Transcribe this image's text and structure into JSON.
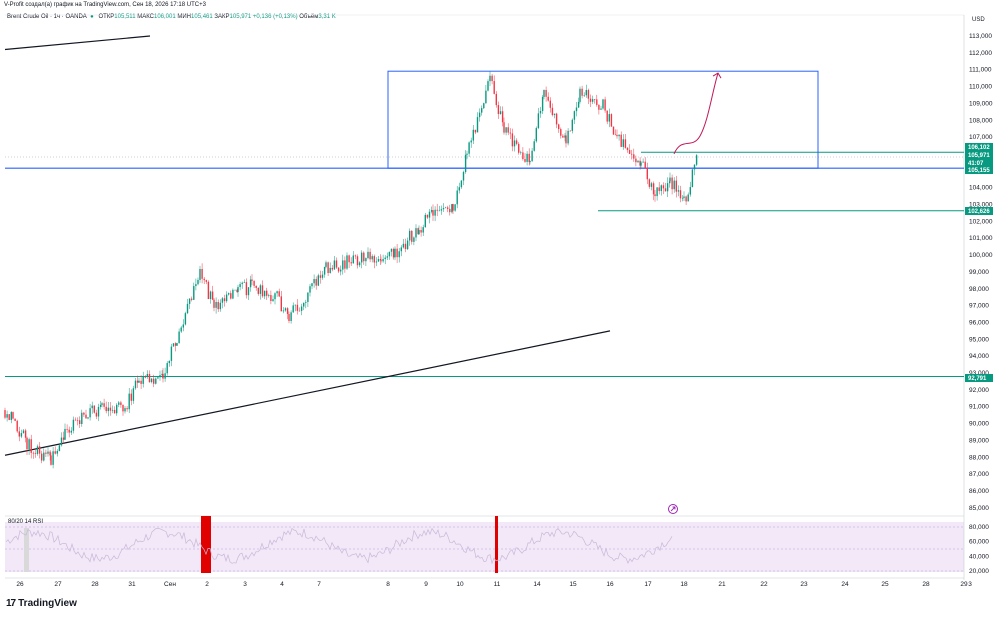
{
  "credit": "V-Profit создал(а) график на TradingView.com, Сен 18, 2026 17:18 UTC+3",
  "legend": {
    "symbol": "Brent Crude Oil · 1ч · OANDA",
    "open_label": "ОТКР",
    "open": "105,511",
    "high_label": "МАКС",
    "high": "106,001",
    "low_label": "МИН",
    "low": "105,461",
    "close_label": "ЗАКР",
    "close": "105,971",
    "change": "+0,136 (+0,13%)",
    "volume_label": "Объём",
    "volume": "3,31 K"
  },
  "currency": "USD",
  "rsi": {
    "title": "80/20 14 RSI",
    "ticks": [
      "80,000",
      "60,000",
      "40,000",
      "20,000"
    ],
    "upper": 80,
    "lower": 20
  },
  "price_badges": [
    {
      "label": "106,102",
      "price": 106.102,
      "color": "#089981"
    },
    {
      "label": "105,971",
      "price": 105.971,
      "color": "#089981"
    },
    {
      "label": "41:07",
      "price": 105.971,
      "color": "#089981"
    },
    {
      "label": "105,155",
      "price": 105.155,
      "color": "#089981"
    },
    {
      "label": "102,626",
      "price": 102.626,
      "color": "#089981"
    },
    {
      "label": "92,791",
      "price": 92.791,
      "color": "#089981"
    }
  ],
  "brand": {
    "mark": "17",
    "name": "TradingView"
  },
  "chart_data": {
    "type": "candlestick",
    "y_unit": "USD",
    "ylim": [
      85,
      113
    ],
    "y_ticks": [
      "113,000",
      "112,000",
      "111,000",
      "110,000",
      "109,000",
      "108,000",
      "107,000",
      "106,000",
      "105,000",
      "104,000",
      "103,000",
      "102,000",
      "101,000",
      "100,000",
      "99,000",
      "98,000",
      "97,000",
      "96,000",
      "95,000",
      "94,000",
      "93,000",
      "92,000",
      "91,000",
      "90,000",
      "89,000",
      "88,000",
      "87,000",
      "86,000",
      "85,000"
    ],
    "x_ticks": [
      "26",
      "27",
      "28",
      "31",
      "Сен",
      "2",
      "3",
      "4",
      "7",
      "8",
      "9",
      "10",
      "11",
      "14",
      "15",
      "16",
      "17",
      "18",
      "21",
      "22",
      "23",
      "24",
      "25",
      "28",
      "29",
      "3"
    ],
    "anchors": [
      {
        "x": "26",
        "price": 90.3
      },
      {
        "x": "26",
        "price": 88.8
      },
      {
        "x": "27",
        "price": 87.8
      },
      {
        "x": "27",
        "price": 89.5
      },
      {
        "x": "28",
        "price": 90.6
      },
      {
        "x": "28",
        "price": 90.8
      },
      {
        "x": "31",
        "price": 91.0
      },
      {
        "x": "31",
        "price": 92.7
      },
      {
        "x": "Сен",
        "price": 92.8
      },
      {
        "x": "Сен",
        "price": 95.0
      },
      {
        "x": "2",
        "price": 98.9
      },
      {
        "x": "2",
        "price": 97.0
      },
      {
        "x": "3",
        "price": 97.8
      },
      {
        "x": "3",
        "price": 98.2
      },
      {
        "x": "4",
        "price": 97.6
      },
      {
        "x": "4",
        "price": 96.4
      },
      {
        "x": "7",
        "price": 98.0
      },
      {
        "x": "7",
        "price": 99.3
      },
      {
        "x": "8",
        "price": 100.0
      },
      {
        "x": "8",
        "price": 100.2
      },
      {
        "x": "9",
        "price": 101.5
      },
      {
        "x": "9",
        "price": 102.6
      },
      {
        "x": "10",
        "price": 103.0
      },
      {
        "x": "10",
        "price": 106.0
      },
      {
        "x": "11",
        "price": 110.5
      },
      {
        "x": "11",
        "price": 107.5
      },
      {
        "x": "14",
        "price": 105.6
      },
      {
        "x": "14",
        "price": 109.6
      },
      {
        "x": "15",
        "price": 106.8
      },
      {
        "x": "15",
        "price": 109.8
      },
      {
        "x": "16",
        "price": 108.8
      },
      {
        "x": "16",
        "price": 107.0
      },
      {
        "x": "17",
        "price": 105.5
      },
      {
        "x": "17",
        "price": 103.5
      },
      {
        "x": "18",
        "price": 104.3
      },
      {
        "x": "18",
        "price": 103.2
      },
      {
        "x": "18",
        "price": 106.0
      }
    ],
    "horizontal_levels": [
      106.102,
      105.155,
      102.626,
      92.791
    ],
    "range_box": {
      "x_start": "8",
      "x_end": "23",
      "price_top": 111.0,
      "price_bottom": 105.155
    },
    "trendlines": [
      {
        "x1": "26",
        "p1": 88.0,
        "x2": "15",
        "p2": 95.5
      },
      {
        "x1": "26",
        "p1": 112.2,
        "x2": "31",
        "p2": 113.0
      }
    ],
    "projection": [
      {
        "x": "18",
        "price": 106.0
      },
      {
        "x": "21",
        "price": 110.8
      }
    ],
    "rsi_highlight_regions": [
      "2",
      "11"
    ]
  }
}
